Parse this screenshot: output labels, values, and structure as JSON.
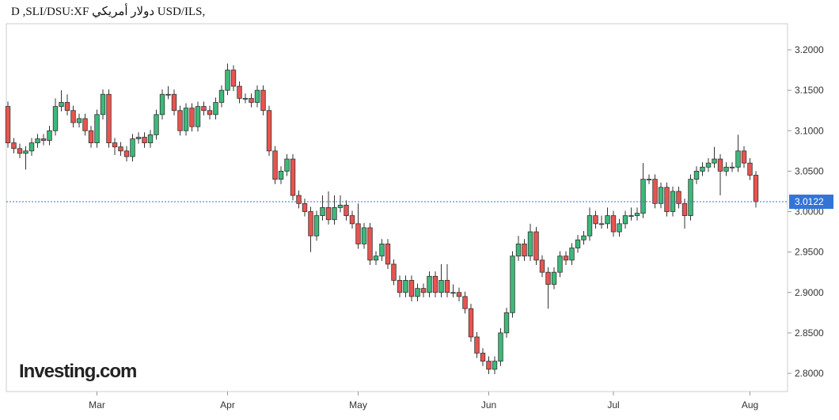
{
  "chart_data": {
    "type": "candlestick",
    "title": "D ,SLI/DSU:XF دولار أمريكي USD/ILS,",
    "watermark": "Investing.com",
    "up_color": "#3cba7a",
    "down_color": "#e9544f",
    "last_price": 3.0122,
    "last_price_label": "3.0122",
    "ylim": [
      2.7775,
      3.2323
    ],
    "yticks": [
      {
        "value": 2.8,
        "label": "2.8000"
      },
      {
        "value": 2.85,
        "label": "2.8500"
      },
      {
        "value": 2.9,
        "label": "2.9000"
      },
      {
        "value": 2.95,
        "label": "2.9500"
      },
      {
        "value": 3.0,
        "label": "3.0000"
      },
      {
        "value": 3.05,
        "label": "3.0500"
      },
      {
        "value": 3.1,
        "label": "3.1000"
      },
      {
        "value": 3.15,
        "label": "3.1500"
      },
      {
        "value": 3.2,
        "label": "3.2000"
      }
    ],
    "categories": [
      null,
      null,
      null,
      null,
      null,
      null,
      null,
      null,
      null,
      null,
      null,
      null,
      null,
      null,
      null,
      "Mar",
      null,
      null,
      null,
      null,
      null,
      null,
      null,
      null,
      null,
      null,
      null,
      null,
      null,
      null,
      null,
      null,
      null,
      null,
      null,
      null,
      null,
      "Apr",
      null,
      null,
      null,
      null,
      null,
      null,
      null,
      null,
      null,
      null,
      null,
      null,
      null,
      null,
      null,
      null,
      null,
      null,
      null,
      null,
      null,
      "May",
      null,
      null,
      null,
      null,
      null,
      null,
      null,
      null,
      null,
      null,
      null,
      null,
      null,
      null,
      null,
      null,
      null,
      null,
      null,
      null,
      null,
      "Jun",
      null,
      null,
      null,
      null,
      null,
      null,
      null,
      null,
      null,
      null,
      null,
      null,
      null,
      null,
      null,
      null,
      null,
      null,
      null,
      null,
      "Jul",
      null,
      null,
      null,
      null,
      null,
      null,
      null,
      null,
      null,
      null,
      null,
      null,
      null,
      null,
      null,
      null,
      null,
      null,
      null,
      null,
      null,
      null,
      "Aug",
      null
    ],
    "open": [
      3.13,
      3.085,
      3.078,
      3.072,
      3.075,
      3.085,
      3.09,
      3.088,
      3.1,
      3.13,
      3.135,
      3.125,
      3.11,
      3.115,
      3.1,
      3.085,
      3.12,
      3.145,
      3.085,
      3.08,
      3.075,
      3.068,
      3.09,
      3.092,
      3.085,
      3.095,
      3.12,
      3.145,
      3.145,
      3.125,
      3.1,
      3.128,
      3.105,
      3.13,
      3.125,
      3.12,
      3.135,
      3.15,
      3.175,
      3.155,
      3.14,
      3.14,
      3.135,
      3.15,
      3.125,
      3.075,
      3.04,
      3.05,
      3.065,
      3.02,
      3.01,
      3.0,
      2.97,
      2.995,
      3.005,
      2.99,
      3.005,
      3.008,
      2.995,
      2.985,
      2.96,
      2.98,
      2.94,
      2.945,
      2.96,
      2.935,
      2.915,
      2.9,
      2.915,
      2.895,
      2.905,
      2.9,
      2.92,
      2.9,
      2.915,
      2.9,
      2.9,
      2.895,
      2.88,
      2.845,
      2.825,
      2.815,
      2.805,
      2.815,
      2.85,
      2.875,
      2.945,
      2.96,
      2.945,
      2.975,
      2.94,
      2.925,
      2.91,
      2.925,
      2.945,
      2.94,
      2.955,
      2.965,
      2.97,
      2.995,
      2.985,
      2.985,
      2.995,
      2.975,
      2.985,
      2.995,
      2.995,
      2.998,
      3.04,
      3.04,
      3.01,
      3.03,
      3.0,
      3.025,
      3.01,
      2.995,
      3.04,
      3.05,
      3.055,
      3.06,
      3.065,
      3.05,
      3.055,
      3.055,
      3.075,
      3.06,
      3.045
    ],
    "high": [
      3.136,
      3.091,
      3.084,
      3.081,
      3.091,
      3.096,
      3.096,
      3.106,
      3.14,
      3.15,
      3.145,
      3.131,
      3.121,
      3.121,
      3.106,
      3.126,
      3.151,
      3.151,
      3.091,
      3.086,
      3.081,
      3.096,
      3.098,
      3.098,
      3.101,
      3.126,
      3.151,
      3.155,
      3.151,
      3.131,
      3.134,
      3.134,
      3.136,
      3.136,
      3.131,
      3.141,
      3.156,
      3.183,
      3.181,
      3.161,
      3.146,
      3.146,
      3.156,
      3.156,
      3.131,
      3.081,
      3.056,
      3.071,
      3.071,
      3.026,
      3.016,
      3.006,
      3.001,
      3.02,
      3.025,
      3.02,
      3.02,
      3.014,
      3.001,
      3.01,
      2.986,
      2.986,
      2.951,
      2.966,
      2.966,
      2.941,
      2.921,
      2.921,
      2.921,
      2.911,
      2.911,
      2.926,
      2.926,
      2.935,
      2.935,
      2.91,
      2.906,
      2.901,
      2.886,
      2.851,
      2.831,
      2.821,
      2.821,
      2.856,
      2.881,
      2.951,
      2.97,
      2.966,
      2.985,
      2.981,
      2.946,
      2.931,
      2.931,
      2.951,
      2.951,
      2.961,
      2.971,
      2.976,
      3.005,
      3.001,
      2.995,
      3.005,
      3.001,
      2.991,
      3.001,
      3.005,
      3.005,
      3.06,
      3.046,
      3.046,
      3.036,
      3.036,
      3.031,
      3.031,
      3.016,
      3.046,
      3.056,
      3.061,
      3.066,
      3.08,
      3.071,
      3.061,
      3.061,
      3.095,
      3.081,
      3.066,
      3.05
    ],
    "low": [
      3.079,
      3.072,
      3.066,
      3.052,
      3.069,
      3.079,
      3.082,
      3.082,
      3.094,
      3.124,
      3.119,
      3.104,
      3.104,
      3.094,
      3.079,
      3.079,
      3.114,
      3.079,
      3.07,
      3.069,
      3.062,
      3.062,
      3.084,
      3.079,
      3.079,
      3.089,
      3.114,
      3.139,
      3.119,
      3.094,
      3.094,
      3.099,
      3.099,
      3.119,
      3.114,
      3.114,
      3.129,
      3.144,
      3.149,
      3.134,
      3.134,
      3.129,
      3.129,
      3.119,
      3.069,
      3.034,
      3.034,
      3.044,
      3.014,
      3.004,
      2.994,
      2.95,
      2.964,
      2.989,
      2.984,
      2.984,
      2.999,
      2.989,
      2.979,
      2.954,
      2.954,
      2.934,
      2.934,
      2.939,
      2.929,
      2.909,
      2.894,
      2.894,
      2.889,
      2.889,
      2.894,
      2.894,
      2.894,
      2.894,
      2.894,
      2.894,
      2.889,
      2.874,
      2.839,
      2.819,
      2.809,
      2.799,
      2.799,
      2.809,
      2.844,
      2.869,
      2.939,
      2.939,
      2.939,
      2.934,
      2.919,
      2.88,
      2.904,
      2.919,
      2.934,
      2.934,
      2.949,
      2.959,
      2.964,
      2.979,
      2.979,
      2.979,
      2.969,
      2.969,
      2.979,
      2.989,
      2.989,
      2.992,
      3.034,
      3.004,
      3.004,
      2.994,
      2.994,
      3.004,
      2.979,
      2.989,
      3.034,
      3.044,
      3.049,
      3.054,
      3.02,
      3.044,
      3.049,
      3.049,
      3.054,
      3.039,
      3.005
    ],
    "close": [
      3.085,
      3.078,
      3.072,
      3.075,
      3.085,
      3.09,
      3.088,
      3.1,
      3.13,
      3.135,
      3.125,
      3.11,
      3.115,
      3.1,
      3.085,
      3.12,
      3.145,
      3.085,
      3.08,
      3.075,
      3.068,
      3.09,
      3.092,
      3.085,
      3.095,
      3.12,
      3.145,
      3.145,
      3.125,
      3.1,
      3.128,
      3.105,
      3.13,
      3.125,
      3.12,
      3.135,
      3.15,
      3.175,
      3.155,
      3.14,
      3.14,
      3.135,
      3.15,
      3.125,
      3.075,
      3.04,
      3.05,
      3.065,
      3.02,
      3.01,
      3.0,
      2.97,
      2.995,
      3.005,
      2.99,
      3.005,
      3.008,
      2.995,
      2.985,
      2.96,
      2.98,
      2.94,
      2.945,
      2.96,
      2.935,
      2.915,
      2.9,
      2.915,
      2.895,
      2.905,
      2.9,
      2.92,
      2.9,
      2.915,
      2.9,
      2.9,
      2.895,
      2.88,
      2.845,
      2.825,
      2.815,
      2.805,
      2.815,
      2.85,
      2.875,
      2.945,
      2.96,
      2.945,
      2.975,
      2.94,
      2.925,
      2.91,
      2.925,
      2.945,
      2.94,
      2.955,
      2.965,
      2.97,
      2.995,
      2.985,
      2.985,
      2.995,
      2.975,
      2.985,
      2.995,
      2.995,
      2.998,
      3.04,
      3.04,
      3.01,
      3.03,
      3.0,
      3.025,
      3.01,
      2.995,
      3.04,
      3.05,
      3.055,
      3.06,
      3.065,
      3.05,
      3.055,
      3.055,
      3.075,
      3.06,
      3.045,
      3.0122
    ]
  }
}
